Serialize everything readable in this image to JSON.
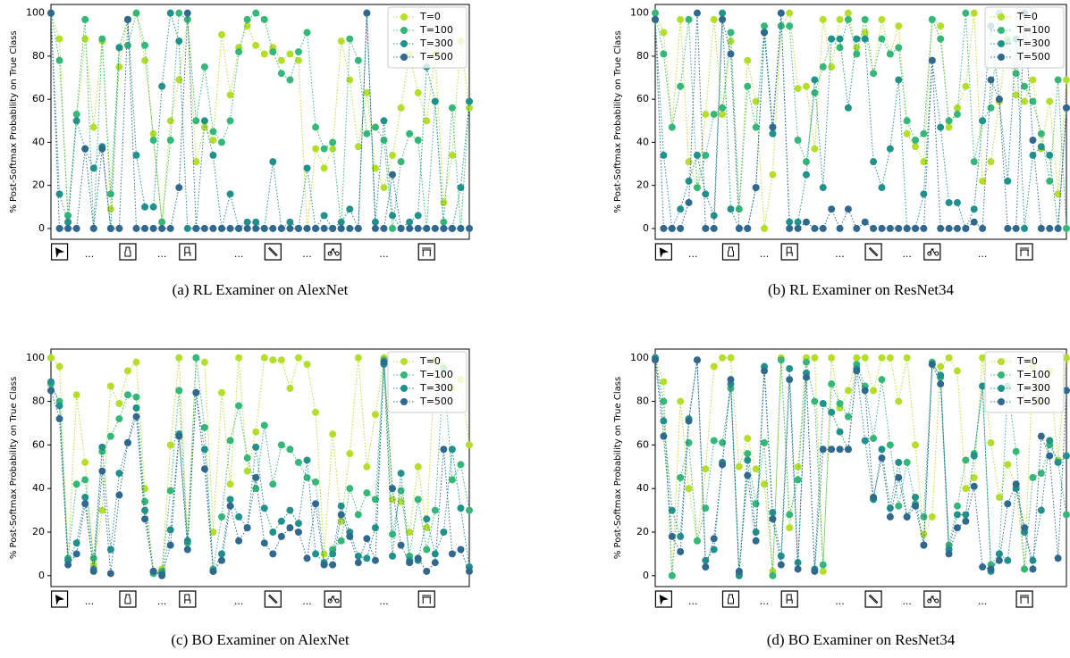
{
  "chart_data": [
    {
      "type": "line",
      "title": "(a) RL Examiner on AlexNet",
      "ylabel": "% Post-Softmax Probability on True Class",
      "xlim": [
        0,
        49
      ],
      "ylim": [
        -5,
        104
      ],
      "yticks": [
        0,
        20,
        40,
        60,
        80,
        100
      ],
      "xticks": [
        1,
        {
          "value": 4.5,
          "label": "..."
        },
        9,
        {
          "value": 13,
          "label": "..."
        },
        16,
        {
          "value": 22,
          "label": "..."
        },
        26,
        {
          "value": 30,
          "label": "..."
        },
        33,
        {
          "value": 39,
          "label": "..."
        },
        44
      ],
      "legend": "upper right",
      "series": [
        {
          "name": "T=0",
          "color": "#b5de2b",
          "values": [
            100,
            88,
            3,
            50,
            88,
            47,
            87,
            9,
            75,
            97,
            100,
            78,
            44,
            3,
            50,
            69,
            97,
            31,
            47,
            41,
            90,
            62,
            84,
            94,
            85,
            81,
            84,
            78,
            81,
            78,
            0,
            37,
            28,
            37,
            87,
            69,
            38,
            63,
            28,
            19,
            34,
            56,
            81,
            63,
            50,
            81,
            12,
            34,
            87,
            56
          ]
        },
        {
          "name": "T=100",
          "color": "#35b779",
          "values": [
            100,
            78,
            6,
            53,
            97,
            0,
            88,
            16,
            84,
            85,
            100,
            85,
            41,
            3,
            41,
            100,
            97,
            50,
            75,
            45,
            40,
            50,
            82,
            97,
            100,
            97,
            82,
            72,
            69,
            82,
            91,
            47,
            37,
            40,
            0,
            88,
            78,
            44,
            47,
            41,
            0,
            31,
            44,
            41,
            0,
            59,
            3,
            56,
            0,
            59
          ]
        },
        {
          "name": "T=300",
          "color": "#21918c",
          "values": [
            100,
            16,
            3,
            50,
            37,
            28,
            38,
            0,
            84,
            97,
            34,
            10,
            10,
            66,
            100,
            87,
            0,
            0,
            50,
            34,
            0,
            16,
            0,
            3,
            3,
            0,
            31,
            0,
            3,
            0,
            28,
            0,
            6,
            0,
            3,
            9,
            0,
            100,
            3,
            50,
            6,
            0,
            3,
            6,
            75,
            59,
            0,
            0,
            19,
            59
          ]
        },
        {
          "name": "T=500",
          "color": "#31688e",
          "values": [
            100,
            0,
            0,
            0,
            37,
            0,
            37,
            0,
            0,
            97,
            0,
            0,
            0,
            0,
            0,
            19,
            100,
            0,
            0,
            0,
            0,
            0,
            0,
            0,
            0,
            0,
            0,
            0,
            0,
            0,
            0,
            0,
            0,
            0,
            0,
            0,
            0,
            100,
            0,
            0,
            25,
            0,
            0,
            0,
            0,
            0,
            0,
            0,
            0,
            0
          ]
        }
      ]
    },
    {
      "type": "line",
      "title": "(b) RL Examiner on ResNet34",
      "ylabel": "% Post-Softmax Probability on True Class",
      "xlim": [
        0,
        49
      ],
      "ylim": [
        -5,
        104
      ],
      "yticks": [
        0,
        20,
        40,
        60,
        80,
        100
      ],
      "xticks": [
        1,
        {
          "value": 4.5,
          "label": "..."
        },
        9,
        {
          "value": 13,
          "label": "..."
        },
        16,
        {
          "value": 22,
          "label": "..."
        },
        26,
        {
          "value": 30,
          "label": "..."
        },
        33,
        {
          "value": 39,
          "label": "..."
        },
        44
      ],
      "legend": "upper right",
      "series": [
        {
          "name": "T=0",
          "color": "#b5de2b",
          "values": [
            100,
            91,
            47,
            97,
            31,
            19,
            53,
            97,
            53,
            87,
            9,
            78,
            59,
            0,
            25,
            94,
            100,
            65,
            66,
            37,
            97,
            75,
            97,
            100,
            84,
            91,
            72,
            97,
            81,
            94,
            44,
            38,
            31,
            97,
            94,
            47,
            56,
            66,
            100,
            22,
            31,
            59,
            88,
            62,
            59,
            69,
            37,
            59,
            16,
            69
          ]
        },
        {
          "name": "T=100",
          "color": "#35b779",
          "values": [
            100,
            81,
            47,
            66,
            97,
            19,
            34,
            53,
            56,
            91,
            9,
            66,
            47,
            94,
            47,
            94,
            94,
            41,
            31,
            63,
            75,
            88,
            84,
            97,
            81,
            97,
            72,
            88,
            81,
            84,
            50,
            41,
            44,
            97,
            88,
            50,
            53,
            100,
            31,
            50,
            56,
            100,
            87,
            72,
            66,
            59,
            44,
            22,
            69,
            0
          ]
        },
        {
          "name": "T=300",
          "color": "#21918c",
          "values": [
            97,
            34,
            0,
            9,
            22,
            34,
            16,
            6,
            100,
            9,
            0,
            0,
            19,
            91,
            44,
            100,
            3,
            3,
            25,
            69,
            19,
            88,
            88,
            56,
            88,
            88,
            31,
            19,
            37,
            69,
            0,
            0,
            16,
            78,
            47,
            12,
            12,
            0,
            9,
            50,
            94,
            60,
            22,
            88,
            0,
            34,
            38,
            34,
            0,
            56
          ]
        },
        {
          "name": "T=500",
          "color": "#31688e",
          "values": [
            97,
            0,
            0,
            0,
            12,
            100,
            0,
            0,
            97,
            81,
            0,
            0,
            19,
            91,
            47,
            100,
            0,
            0,
            3,
            0,
            0,
            9,
            0,
            9,
            0,
            3,
            0,
            0,
            0,
            0,
            0,
            0,
            0,
            78,
            0,
            0,
            0,
            0,
            3,
            0,
            69,
            60,
            0,
            0,
            100,
            41,
            0,
            0,
            0,
            56
          ]
        }
      ]
    },
    {
      "type": "line",
      "title": "(c) BO Examiner on AlexNet",
      "ylabel": "% Post-Softmax Probability on True Class",
      "xlim": [
        0,
        49
      ],
      "ylim": [
        -5,
        104
      ],
      "yticks": [
        0,
        20,
        40,
        60,
        80,
        100
      ],
      "xticks": [
        1,
        {
          "value": 4.5,
          "label": "..."
        },
        9,
        {
          "value": 13,
          "label": "..."
        },
        16,
        {
          "value": 22,
          "label": "..."
        },
        26,
        {
          "value": 30,
          "label": "..."
        },
        33,
        {
          "value": 39,
          "label": "..."
        },
        44
      ],
      "legend": "upper right",
      "series": [
        {
          "name": "T=0",
          "color": "#b5de2b",
          "values": [
            100,
            96,
            8,
            83,
            52,
            5,
            30,
            87,
            79,
            94,
            98,
            40,
            2,
            3,
            60,
            100,
            16,
            100,
            98,
            20,
            84,
            42,
            100,
            48,
            66,
            100,
            99,
            99,
            86,
            100,
            97,
            75,
            10,
            65,
            25,
            56,
            100,
            50,
            74,
            100,
            35,
            34,
            20,
            50,
            22,
            99,
            96,
            86,
            90,
            60
          ]
        },
        {
          "name": "T=100",
          "color": "#35b779",
          "values": [
            88,
            80,
            8,
            42,
            44,
            8,
            57,
            64,
            72,
            83,
            82,
            34,
            1,
            2,
            39,
            85,
            15,
            100,
            68,
            3,
            27,
            62,
            78,
            54,
            40,
            69,
            42,
            60,
            58,
            52,
            45,
            43,
            5,
            12,
            16,
            40,
            28,
            38,
            35,
            99,
            19,
            39,
            9,
            35,
            12,
            30,
            95,
            44,
            51,
            30
          ]
        },
        {
          "name": "T=300",
          "color": "#21918c",
          "values": [
            89,
            78,
            7,
            15,
            36,
            3,
            59,
            12,
            47,
            61,
            77,
            30,
            2,
            1,
            21,
            65,
            16,
            84,
            58,
            2,
            10,
            35,
            27,
            22,
            59,
            31,
            20,
            25,
            30,
            24,
            53,
            10,
            6,
            10,
            32,
            20,
            9,
            8,
            22,
            97,
            9,
            47,
            7,
            7,
            26,
            10,
            20,
            58,
            31,
            4
          ]
        },
        {
          "name": "T=500",
          "color": "#31688e",
          "values": [
            85,
            72,
            5,
            10,
            33,
            2,
            48,
            1,
            37,
            61,
            73,
            26,
            2,
            0,
            14,
            64,
            12,
            84,
            49,
            2,
            7,
            32,
            16,
            22,
            45,
            15,
            10,
            18,
            22,
            20,
            8,
            33,
            5,
            5,
            28,
            18,
            6,
            17,
            7,
            98,
            40,
            14,
            6,
            8,
            2,
            6,
            58,
            10,
            12,
            2
          ]
        }
      ]
    },
    {
      "type": "line",
      "title": "(d) BO Examiner on ResNet34",
      "ylabel": "% Post-Softmax Probability on True Class",
      "xlim": [
        0,
        49
      ],
      "ylim": [
        -5,
        104
      ],
      "yticks": [
        0,
        20,
        40,
        60,
        80,
        100
      ],
      "xticks": [
        1,
        {
          "value": 4.5,
          "label": "..."
        },
        9,
        {
          "value": 13,
          "label": "..."
        },
        16,
        {
          "value": 22,
          "label": "..."
        },
        26,
        {
          "value": 30,
          "label": "..."
        },
        33,
        {
          "value": 39,
          "label": "..."
        },
        44
      ],
      "legend": "upper right",
      "series": [
        {
          "name": "T=0",
          "color": "#b5de2b",
          "values": [
            100,
            89,
            0,
            80,
            40,
            16,
            49,
            96,
            100,
            100,
            50,
            63,
            49,
            42,
            2,
            100,
            22,
            50,
            100,
            100,
            2,
            100,
            77,
            85,
            100,
            100,
            85,
            100,
            100,
            80,
            100,
            60,
            19,
            27,
            96,
            100,
            94,
            40,
            45,
            100,
            61,
            36,
            51,
            41,
            3,
            96,
            80,
            94,
            53,
            100
          ]
        },
        {
          "name": "T=100",
          "color": "#35b779",
          "values": [
            100,
            80,
            0,
            45,
            61,
            16,
            31,
            62,
            61,
            86,
            1,
            56,
            33,
            61,
            0,
            99,
            28,
            44,
            98,
            80,
            5,
            88,
            79,
            73,
            97,
            87,
            63,
            90,
            60,
            32,
            52,
            33,
            27,
            98,
            91,
            14,
            32,
            53,
            56,
            87,
            5,
            10,
            87,
            57,
            3,
            45,
            47,
            60,
            52,
            28
          ]
        },
        {
          "name": "T=300",
          "color": "#21918c",
          "values": [
            100,
            71,
            30,
            18,
            72,
            99,
            7,
            12,
            52,
            88,
            0,
            53,
            20,
            96,
            29,
            9,
            95,
            6,
            93,
            3,
            79,
            75,
            66,
            58,
            95,
            62,
            35,
            58,
            31,
            52,
            27,
            36,
            14,
            97,
            92,
            12,
            28,
            28,
            55,
            87,
            2,
            10,
            7,
            40,
            20,
            7,
            30,
            62,
            52,
            55
          ]
        },
        {
          "name": "T=500",
          "color": "#31688e",
          "values": [
            99,
            64,
            18,
            11,
            71,
            99,
            4,
            17,
            51,
            90,
            2,
            46,
            16,
            94,
            26,
            5,
            90,
            3,
            91,
            2,
            58,
            58,
            58,
            58,
            94,
            85,
            36,
            54,
            27,
            45,
            27,
            32,
            14,
            97,
            88,
            10,
            22,
            25,
            41,
            4,
            3,
            7,
            33,
            42,
            22,
            3,
            64,
            55,
            8,
            85
          ]
        }
      ]
    }
  ]
}
